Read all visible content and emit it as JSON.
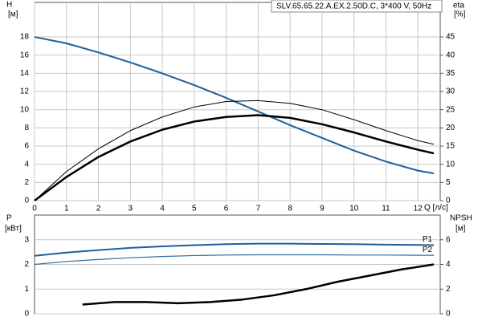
{
  "chart_data": [
    {
      "type": "line",
      "title": "SLV.65.65.22.A.EX.2.50D.C, 3*400 V, 50Hz",
      "ylabel": "H",
      "yunit": "[м]",
      "y2label": "eta",
      "y2unit": "[%]",
      "xlabel": "Q [л/с]",
      "xlim": [
        0,
        12.7
      ],
      "xticks": [
        0,
        1,
        2,
        3,
        4,
        5,
        6,
        7,
        8,
        9,
        10,
        11,
        12
      ],
      "ylim": [
        0,
        21.8
      ],
      "yticks": [
        0,
        2,
        4,
        6,
        8,
        10,
        12,
        14,
        16,
        18
      ],
      "y2lim": [
        0,
        54.5
      ],
      "y2ticks": [
        0,
        5,
        10,
        15,
        20,
        25,
        30,
        35,
        40,
        45
      ],
      "grid": true,
      "series": [
        {
          "color": "#1f5f9a",
          "width": 2,
          "x": [
            0,
            1,
            2,
            3,
            4,
            5,
            6,
            7,
            8,
            9,
            10,
            11,
            12,
            12.5
          ],
          "values": [
            18,
            17.3,
            16.3,
            15.2,
            14,
            12.7,
            11.3,
            9.8,
            8.3,
            6.9,
            5.5,
            4.3,
            3.3,
            3.0
          ]
        },
        {
          "color": "#000000",
          "width": 1,
          "axis": "y2",
          "x": [
            0,
            1,
            2,
            3,
            4,
            5,
            6,
            7,
            8,
            9,
            10,
            11,
            12,
            12.5
          ],
          "values": [
            0,
            8,
            14.25,
            19.25,
            23,
            25.75,
            27.25,
            27.5,
            26.75,
            25,
            22.25,
            19.25,
            16.5,
            15.5
          ]
        },
        {
          "color": "#000000",
          "width": 2.5,
          "axis": "y2",
          "x": [
            0,
            1,
            2,
            3,
            4,
            5,
            6,
            7,
            8,
            9,
            10,
            11,
            12,
            12.5
          ],
          "values": [
            0,
            6.5,
            12,
            16.25,
            19.5,
            21.75,
            23,
            23.5,
            22.75,
            21,
            18.75,
            16.25,
            14,
            13
          ]
        }
      ]
    },
    {
      "type": "line",
      "ylabel": "P",
      "yunit": "[кВт]",
      "y2label": "NPSH",
      "y2unit": "[м]",
      "xlim": [
        0,
        12.7
      ],
      "ylim": [
        0,
        4
      ],
      "yticks": [
        0,
        1,
        2,
        3
      ],
      "y2lim": [
        0,
        8
      ],
      "y2ticks": [
        0,
        2,
        4,
        6
      ],
      "grid": true,
      "series": [
        {
          "name": "P1",
          "color": "#1f5f9a",
          "width": 2,
          "x": [
            0,
            1,
            2,
            3,
            4,
            5,
            6,
            7,
            8,
            9,
            10,
            11,
            12,
            12.5
          ],
          "values": [
            2.35,
            2.48,
            2.58,
            2.67,
            2.73,
            2.78,
            2.82,
            2.84,
            2.84,
            2.83,
            2.82,
            2.8,
            2.79,
            2.78
          ]
        },
        {
          "name": "P2",
          "color": "#2b6ca3",
          "width": 1.2,
          "x": [
            0,
            1,
            2,
            3,
            4,
            5,
            6,
            7,
            8,
            9,
            10,
            11,
            12,
            12.5
          ],
          "values": [
            2.0,
            2.12,
            2.2,
            2.27,
            2.32,
            2.36,
            2.38,
            2.39,
            2.39,
            2.39,
            2.38,
            2.38,
            2.37,
            2.37
          ]
        },
        {
          "color": "#000000",
          "width": 2.5,
          "axis": "y2",
          "x": [
            1.5,
            2.5,
            3.5,
            4.5,
            5.5,
            6.5,
            7.5,
            8.5,
            9.5,
            10.5,
            11.5,
            12.5
          ],
          "values": [
            0.75,
            0.95,
            0.95,
            0.85,
            0.95,
            1.15,
            1.5,
            2.0,
            2.6,
            3.1,
            3.6,
            4.0
          ]
        }
      ]
    }
  ]
}
